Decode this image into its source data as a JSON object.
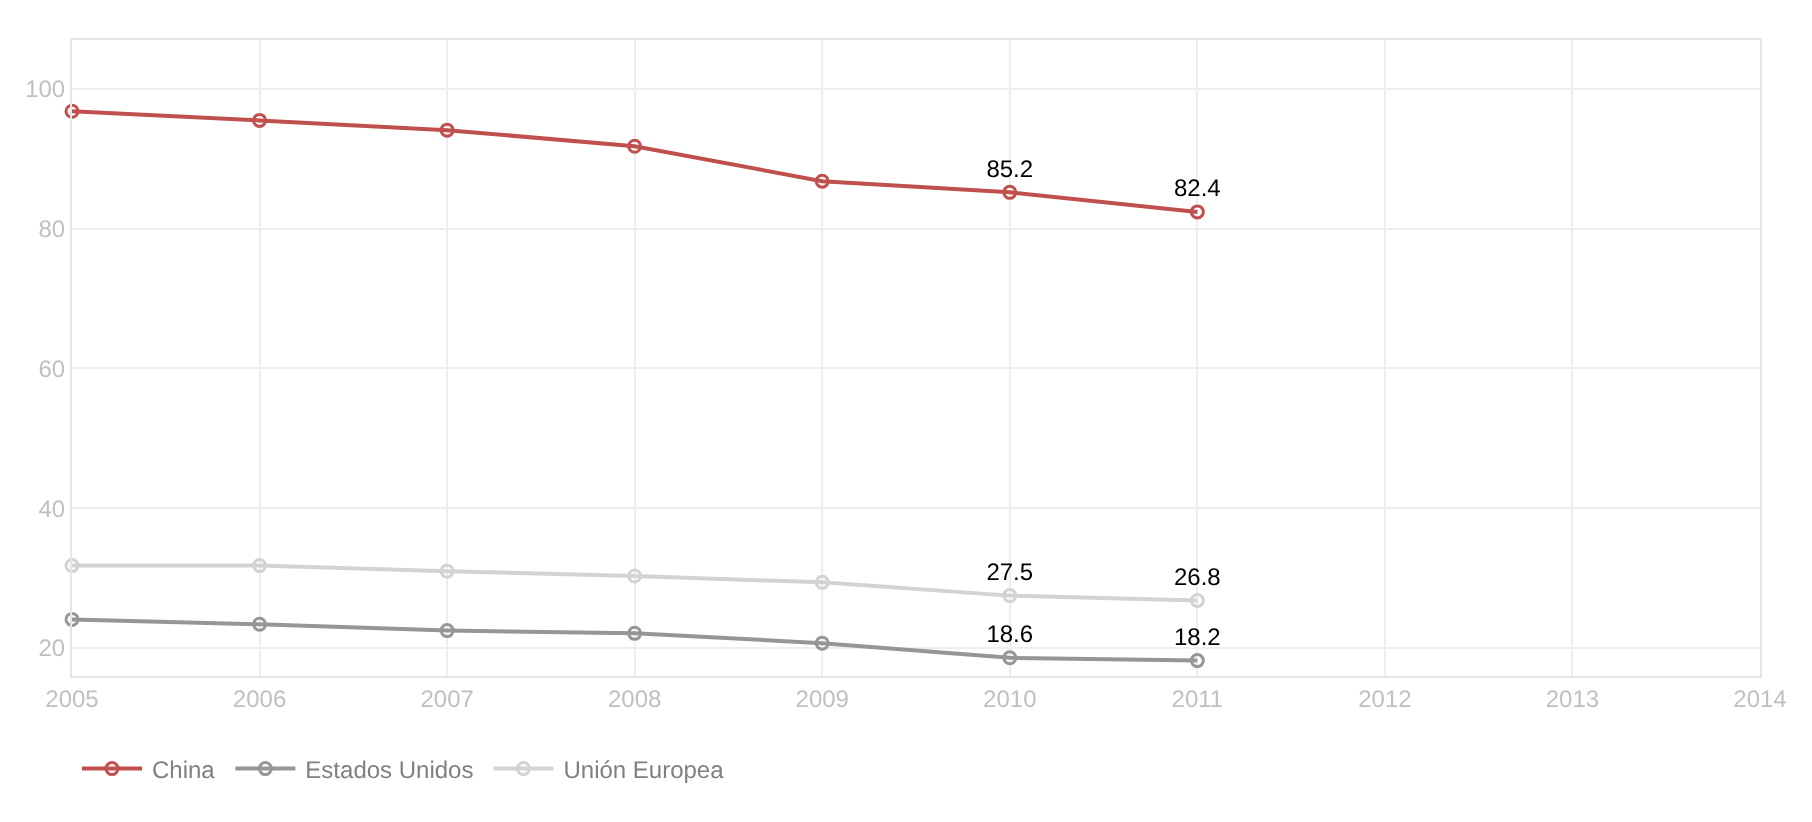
{
  "chart_data": {
    "type": "line",
    "x": [
      2005,
      2006,
      2007,
      2008,
      2009,
      2010,
      2011
    ],
    "series": [
      {
        "name": "China",
        "color": "#c0504d",
        "values": [
          96.8,
          95.5,
          94.1,
          91.8,
          86.8,
          85.2,
          82.4
        ],
        "value_labels": [
          null,
          null,
          null,
          null,
          null,
          "85.2",
          "82.4"
        ]
      },
      {
        "name": "Estados Unidos",
        "color": "#969696",
        "values": [
          24.1,
          23.4,
          22.5,
          22.1,
          20.7,
          18.6,
          18.2
        ],
        "value_labels": [
          null,
          null,
          null,
          null,
          null,
          "18.6",
          "18.2"
        ]
      },
      {
        "name": "Unión Europea",
        "color": "#d3d3d3",
        "values": [
          31.8,
          31.8,
          31.0,
          30.3,
          29.4,
          27.5,
          26.8
        ],
        "value_labels": [
          null,
          null,
          null,
          null,
          null,
          "27.5",
          "26.8"
        ]
      }
    ],
    "xlim": [
      2005,
      2014
    ],
    "xticks": [
      2005,
      2006,
      2007,
      2008,
      2009,
      2010,
      2011,
      2012,
      2013,
      2014
    ],
    "ylim": [
      16,
      107
    ],
    "yticks": [
      20,
      40,
      60,
      80,
      100
    ],
    "grid": true,
    "legend": "bottom left",
    "marker": "circle",
    "line_style": "solid"
  }
}
